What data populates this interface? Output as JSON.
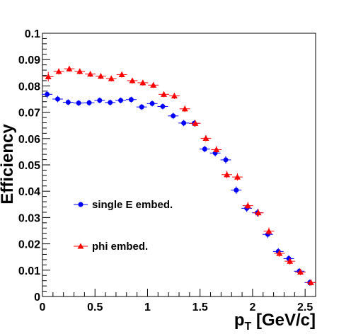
{
  "chart_data": {
    "type": "scatter",
    "title": "",
    "xlabel": {
      "main": "p",
      "sub": "T",
      "rest": " [GeV/c]"
    },
    "ylabel": "Efficiency",
    "xlim": [
      0,
      2.6
    ],
    "ylim": [
      0,
      0.1
    ],
    "x_ticks": [
      0,
      0.5,
      1,
      1.5,
      2,
      2.5
    ],
    "x_tick_labels": [
      "0",
      "0.5",
      "1",
      "1.5",
      "2",
      "2.5"
    ],
    "y_ticks": [
      0,
      0.01,
      0.02,
      0.03,
      0.04,
      0.05,
      0.06,
      0.07,
      0.08,
      0.09,
      0.1
    ],
    "y_tick_labels": [
      "0",
      "0.01",
      "0.02",
      "0.03",
      "0.04",
      "0.05",
      "0.06",
      "0.07",
      "0.08",
      "0.09",
      "0.1"
    ],
    "grid": false,
    "legend_placement": "lower-left",
    "x": [
      0.05,
      0.15,
      0.25,
      0.35,
      0.45,
      0.55,
      0.65,
      0.75,
      0.85,
      0.95,
      1.05,
      1.15,
      1.25,
      1.35,
      1.45,
      1.55,
      1.65,
      1.75,
      1.85,
      1.95,
      2.05,
      2.15,
      2.25,
      2.35,
      2.45,
      2.55
    ],
    "x_error": 0.05,
    "series": [
      {
        "name": "single E embed.",
        "marker": "circle",
        "color": "#0000ff",
        "values": [
          0.0768,
          0.075,
          0.0738,
          0.0735,
          0.0736,
          0.0745,
          0.0737,
          0.0745,
          0.0748,
          0.072,
          0.0733,
          0.0722,
          0.0686,
          0.0659,
          0.0658,
          0.056,
          0.0545,
          0.0519,
          0.0404,
          0.0335,
          0.0318,
          0.0236,
          0.0171,
          0.0144,
          0.0096,
          0.0053
        ],
        "errors": [
          0.0015,
          0.0012,
          0.0011,
          0.0011,
          0.0011,
          0.0011,
          0.0011,
          0.0011,
          0.0011,
          0.0011,
          0.0011,
          0.0011,
          0.0012,
          0.0012,
          0.0012,
          0.0012,
          0.0013,
          0.0014,
          0.0014,
          0.0014,
          0.0014,
          0.0014,
          0.0013,
          0.0013,
          0.0012,
          0.0012
        ]
      },
      {
        "name": "phi embed.",
        "marker": "triangle",
        "color": "#ff0000",
        "values": [
          0.0835,
          0.0855,
          0.0865,
          0.0855,
          0.0845,
          0.0837,
          0.0828,
          0.0843,
          0.082,
          0.0812,
          0.0803,
          0.0768,
          0.0762,
          0.0713,
          0.0658,
          0.0601,
          0.0558,
          0.0463,
          0.0454,
          0.0345,
          0.0318,
          0.0248,
          0.0164,
          0.0134,
          0.0093,
          0.0053
        ],
        "errors": [
          0.0018,
          0.0012,
          0.0011,
          0.0011,
          0.0011,
          0.0011,
          0.0011,
          0.0011,
          0.0011,
          0.0011,
          0.0011,
          0.0011,
          0.0012,
          0.0012,
          0.0012,
          0.0012,
          0.0013,
          0.0014,
          0.0014,
          0.0014,
          0.0014,
          0.0014,
          0.0013,
          0.0013,
          0.0012,
          0.0012
        ]
      }
    ]
  }
}
